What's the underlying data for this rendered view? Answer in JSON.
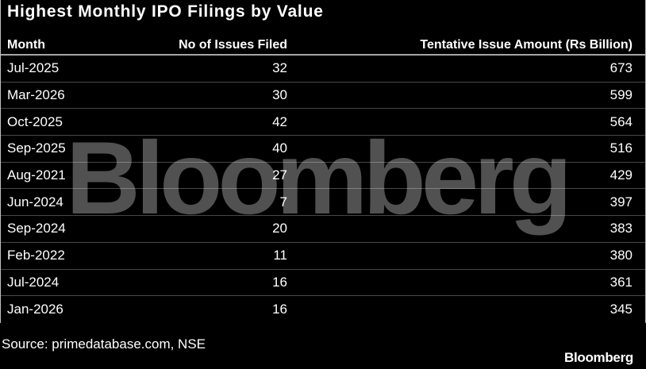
{
  "title": "Highest Monthly IPO Filings by Value",
  "watermark_text": "Bloomberg",
  "source_line": "Source: primedatabase.com, NSE",
  "brand_logo": "Bloomberg",
  "colors": {
    "background": "#000000",
    "text": "#ffffff",
    "watermark": "#515151",
    "header_rule": "#a6a6a6",
    "row_rule": "rgba(255,255,255,0.28)"
  },
  "table": {
    "columns": [
      "Month",
      "No of Issues Filed",
      "Tentative Issue Amount (Rs Billion)"
    ],
    "rows": [
      [
        "Jul-2025",
        "32",
        "673"
      ],
      [
        "Mar-2026",
        "30",
        "599"
      ],
      [
        "Oct-2025",
        "42",
        "564"
      ],
      [
        "Sep-2025",
        "40",
        "516"
      ],
      [
        "Aug-2021",
        "27",
        "429"
      ],
      [
        "Jun-2024",
        "7",
        "397"
      ],
      [
        "Sep-2024",
        "20",
        "383"
      ],
      [
        "Feb-2022",
        "11",
        "380"
      ],
      [
        "Jul-2024",
        "16",
        "361"
      ],
      [
        "Jan-2026",
        "16",
        "345"
      ]
    ]
  },
  "chart_data": {
    "type": "table",
    "title": "Highest Monthly IPO Filings by Value",
    "columns": [
      "Month",
      "No of Issues Filed",
      "Tentative Issue Amount (Rs Billion)"
    ],
    "rows": [
      {
        "month": "Jul-2025",
        "issues_filed": 32,
        "tentative_issue_amount_rs_billion": 673
      },
      {
        "month": "Mar-2026",
        "issues_filed": 30,
        "tentative_issue_amount_rs_billion": 599
      },
      {
        "month": "Oct-2025",
        "issues_filed": 42,
        "tentative_issue_amount_rs_billion": 564
      },
      {
        "month": "Sep-2025",
        "issues_filed": 40,
        "tentative_issue_amount_rs_billion": 516
      },
      {
        "month": "Aug-2021",
        "issues_filed": 27,
        "tentative_issue_amount_rs_billion": 429
      },
      {
        "month": "Jun-2024",
        "issues_filed": 7,
        "tentative_issue_amount_rs_billion": 397
      },
      {
        "month": "Sep-2024",
        "issues_filed": 20,
        "tentative_issue_amount_rs_billion": 383
      },
      {
        "month": "Feb-2022",
        "issues_filed": 11,
        "tentative_issue_amount_rs_billion": 380
      },
      {
        "month": "Jul-2024",
        "issues_filed": 16,
        "tentative_issue_amount_rs_billion": 361
      },
      {
        "month": "Jan-2026",
        "issues_filed": 16,
        "tentative_issue_amount_rs_billion": 345
      }
    ],
    "source": "Source: primedatabase.com, NSE"
  }
}
